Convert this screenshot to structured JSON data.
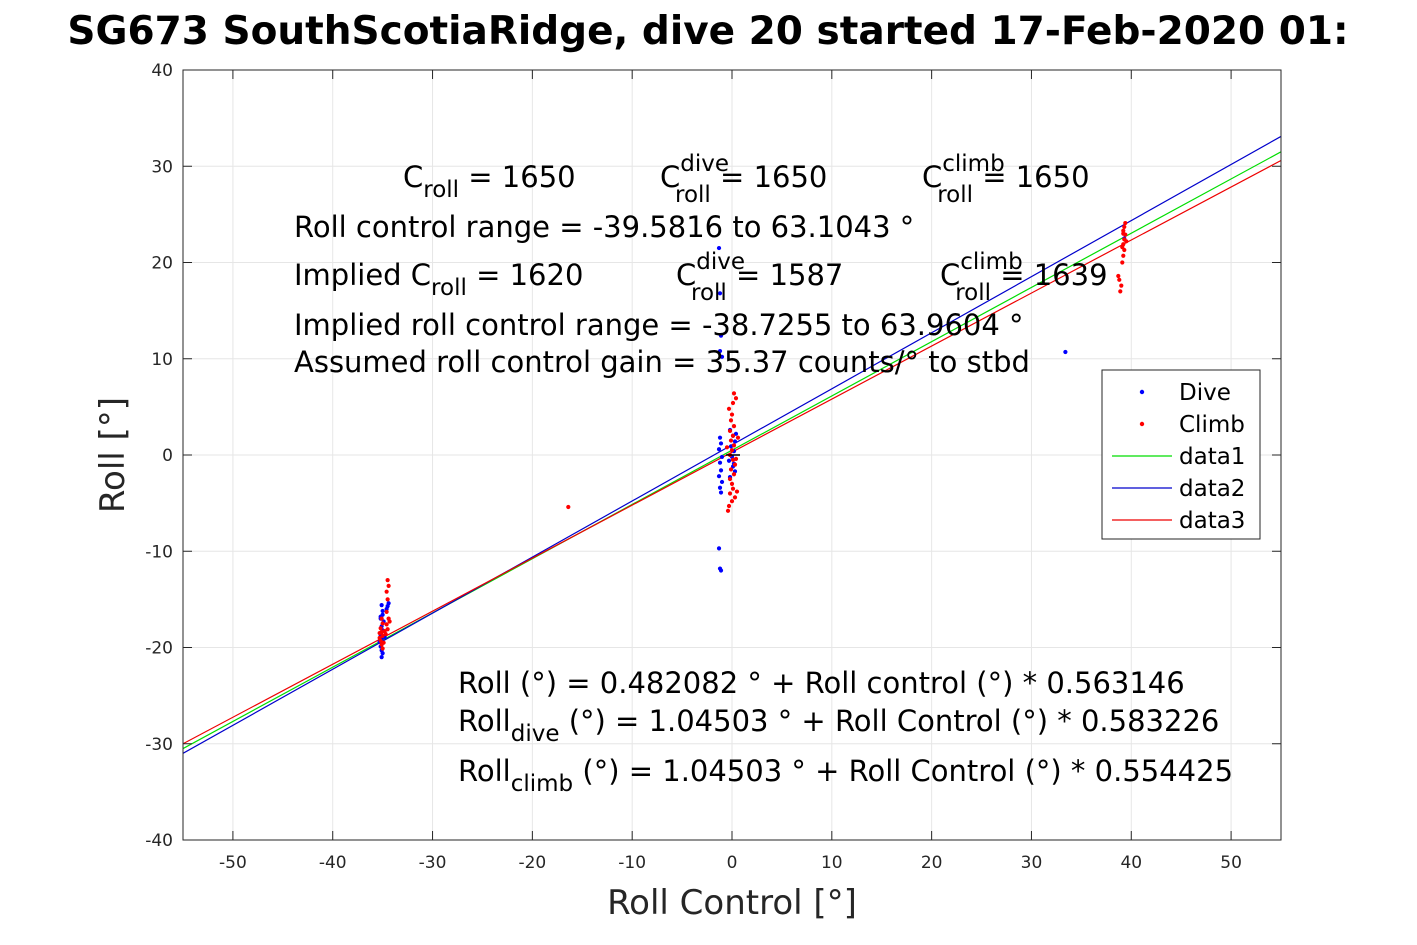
{
  "chart_data": {
    "type": "scatter",
    "title": "SG673 SouthScotiaRidge, dive 20 started 17-Feb-2020 01:",
    "xlabel": "Roll Control [°]",
    "ylabel": "Roll [°]",
    "xlim": [
      -55,
      55
    ],
    "ylim": [
      -40,
      40
    ],
    "x_ticks": [
      -50,
      -40,
      -30,
      -20,
      -10,
      0,
      10,
      20,
      30,
      40,
      50
    ],
    "y_ticks": [
      -40,
      -30,
      -20,
      -10,
      0,
      10,
      20,
      30,
      40
    ],
    "grid": true,
    "legend_position": "right",
    "colors": {
      "dive": "#0000ff",
      "climb": "#ff0000",
      "data1": "#00dd00",
      "data2": "#0000cc",
      "data3": "#ee0000"
    },
    "annotations": {
      "line1": [
        {
          "base": "C",
          "sub": "roll",
          "rest": " = 1650"
        },
        {
          "base": "C",
          "sup": "dive",
          "sub": "roll",
          "rest": " = 1650"
        },
        {
          "base": "C",
          "sup": "climb",
          "sub": "roll",
          "rest": " = 1650"
        }
      ],
      "line2": "Roll control range = -39.5816 to 63.1043 °",
      "line3": [
        {
          "base": "Implied C",
          "sub": "roll",
          "rest": " = 1620"
        },
        {
          "base": "C",
          "sup": "dive",
          "sub": "roll",
          "rest": " = 1587"
        },
        {
          "base": "C",
          "sup": "climb",
          "sub": "roll",
          "rest": " = 1639"
        }
      ],
      "line4": "Implied roll control range = -38.7255 to 63.9604 °",
      "line5": "Assumed roll control gain = 35.37 counts/° to stbd",
      "fit1": "Roll (°) = 0.482082 ° + Roll control (°) * 0.563146",
      "fit2": {
        "base": "Roll",
        "sub": "dive",
        "rest": " (°) = 1.04503 ° + Roll Control (°) * 0.583226"
      },
      "fit3": {
        "base": "Roll",
        "sub": "climb",
        "rest": " (°) = 1.04503 ° + Roll Control (°) * 0.554425"
      }
    },
    "series": [
      {
        "name": "Dive",
        "kind": "points",
        "points": [
          [
            -35.1,
            -15.6
          ],
          [
            -35.0,
            -16.2
          ],
          [
            -35.2,
            -16.8
          ],
          [
            -34.9,
            -17.3
          ],
          [
            -35.1,
            -17.8
          ],
          [
            -35.0,
            -18.2
          ],
          [
            -35.2,
            -18.7
          ],
          [
            -35.1,
            -19.1
          ],
          [
            -35.0,
            -19.5
          ],
          [
            -35.2,
            -19.9
          ],
          [
            -35.1,
            -20.3
          ],
          [
            -35.0,
            -20.6
          ],
          [
            -35.1,
            -21.0
          ],
          [
            -34.8,
            -18.9
          ],
          [
            -35.3,
            -19.4
          ],
          [
            -34.6,
            -16.0
          ],
          [
            -34.4,
            -15.4
          ],
          [
            -34.5,
            -15.7
          ],
          [
            -35.0,
            -16.6
          ],
          [
            -35.2,
            -17.0
          ],
          [
            -1.3,
            21.5
          ],
          [
            -1.2,
            16.8
          ],
          [
            -1.1,
            12.4
          ],
          [
            -1.2,
            10.8
          ],
          [
            -1.0,
            10.2
          ],
          [
            -1.2,
            1.8
          ],
          [
            -1.1,
            1.2
          ],
          [
            -1.3,
            0.6
          ],
          [
            -1.0,
            -0.2
          ],
          [
            -1.2,
            -0.8
          ],
          [
            -1.1,
            -1.6
          ],
          [
            -1.3,
            -2.2
          ],
          [
            -1.0,
            -2.8
          ],
          [
            -1.2,
            -3.4
          ],
          [
            -1.1,
            -3.9
          ],
          [
            -1.3,
            -9.7
          ],
          [
            -1.2,
            -11.8
          ],
          [
            -1.1,
            -12.0
          ],
          [
            -0.2,
            2.6
          ],
          [
            0.1,
            2.0
          ],
          [
            0.3,
            1.4
          ],
          [
            -0.1,
            0.9
          ],
          [
            0.2,
            0.4
          ],
          [
            0.0,
            -0.2
          ],
          [
            -0.3,
            -0.6
          ],
          [
            0.1,
            -1.2
          ],
          [
            0.3,
            -1.7
          ],
          [
            -0.2,
            -2.3
          ],
          [
            0.4,
            2.2
          ],
          [
            0.2,
            -0.9
          ],
          [
            33.4,
            10.7
          ],
          [
            39.3,
            22.5
          ]
        ]
      },
      {
        "name": "Climb",
        "kind": "points",
        "points": [
          [
            -34.5,
            -13.0
          ],
          [
            -34.4,
            -13.6
          ],
          [
            -34.6,
            -14.2
          ],
          [
            -34.5,
            -15.0
          ],
          [
            -34.6,
            -16.3
          ],
          [
            -34.4,
            -17.0
          ],
          [
            -34.6,
            -17.6
          ],
          [
            -34.5,
            -18.1
          ],
          [
            -34.7,
            -18.6
          ],
          [
            -35.0,
            -17.5
          ],
          [
            -35.2,
            -18.0
          ],
          [
            -35.1,
            -18.4
          ],
          [
            -35.0,
            -18.8
          ],
          [
            -35.2,
            -19.3
          ],
          [
            -35.1,
            -19.7
          ],
          [
            -35.0,
            -20.1
          ],
          [
            -35.3,
            -19.0
          ],
          [
            -35.3,
            -18.5
          ],
          [
            -34.9,
            -19.5
          ],
          [
            -35.1,
            -17.0
          ],
          [
            -34.8,
            -18.3
          ],
          [
            -34.3,
            -17.3
          ],
          [
            -16.4,
            -5.4
          ],
          [
            0.2,
            6.4
          ],
          [
            0.4,
            5.9
          ],
          [
            0.1,
            5.4
          ],
          [
            -0.3,
            4.8
          ],
          [
            0.0,
            4.2
          ],
          [
            -0.1,
            3.6
          ],
          [
            0.2,
            3.0
          ],
          [
            -0.2,
            2.5
          ],
          [
            0.1,
            2.0
          ],
          [
            -0.1,
            1.5
          ],
          [
            0.2,
            1.0
          ],
          [
            0.0,
            0.5
          ],
          [
            -0.2,
            0.0
          ],
          [
            0.1,
            -0.5
          ],
          [
            0.3,
            -1.0
          ],
          [
            -0.1,
            -1.5
          ],
          [
            0.2,
            -2.0
          ],
          [
            -0.2,
            -2.5
          ],
          [
            0.0,
            -3.0
          ],
          [
            0.1,
            -3.5
          ],
          [
            -0.2,
            -4.0
          ],
          [
            0.3,
            -4.4
          ],
          [
            0.0,
            -4.8
          ],
          [
            -0.3,
            -5.3
          ],
          [
            -0.4,
            -5.8
          ],
          [
            0.5,
            -3.8
          ],
          [
            0.6,
            1.8
          ],
          [
            -0.5,
            0.8
          ],
          [
            0.4,
            -0.4
          ],
          [
            38.9,
            17.0
          ],
          [
            39.0,
            17.6
          ],
          [
            38.8,
            18.2
          ],
          [
            39.1,
            20.0
          ],
          [
            39.2,
            20.7
          ],
          [
            39.3,
            21.3
          ],
          [
            39.2,
            21.9
          ],
          [
            39.3,
            22.4
          ],
          [
            39.4,
            22.9
          ],
          [
            39.2,
            23.3
          ],
          [
            39.3,
            23.7
          ],
          [
            39.4,
            24.1
          ],
          [
            39.2,
            23.0
          ],
          [
            39.5,
            22.2
          ],
          [
            39.1,
            21.6
          ],
          [
            38.7,
            18.6
          ]
        ]
      },
      {
        "name": "data1",
        "kind": "line",
        "x": [
          -55,
          55
        ],
        "y": [
          -30.5,
          31.5
        ]
      },
      {
        "name": "data2",
        "kind": "line",
        "x": [
          -55,
          55
        ],
        "y": [
          -31.0,
          33.1
        ]
      },
      {
        "name": "data3",
        "kind": "line",
        "x": [
          -55,
          55
        ],
        "y": [
          -30.0,
          30.6
        ]
      }
    ]
  }
}
